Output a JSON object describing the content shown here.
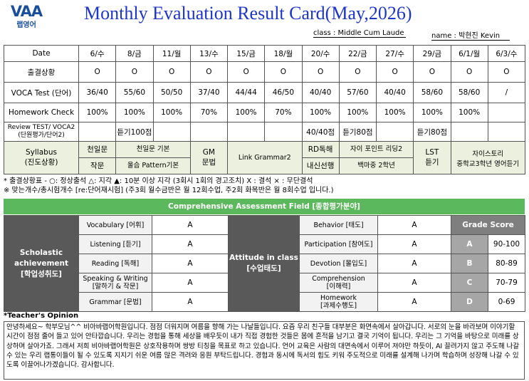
{
  "header": {
    "logo": "VAA",
    "logo_sub": "랩영어",
    "title": "Monthly Evaluation Result Card(May,2026)",
    "class": "class : Middle Cum Laude",
    "name": "name :  박현진 Kevin"
  },
  "attendance": {
    "header": [
      "Date",
      "6/수",
      "8/금",
      "11/월",
      "13/수",
      "15/금",
      "18/월",
      "20/수",
      "22/금",
      "27/수",
      "29/금",
      "6/1/월",
      "6/3/수"
    ],
    "rows": [
      [
        [
          "출결상황"
        ],
        "O",
        "O",
        "O",
        "O",
        "O",
        "O",
        "O",
        "O",
        "O",
        "O",
        "O",
        "O"
      ],
      [
        [
          "VOCA Test (단어)"
        ],
        "36/40",
        "55/60",
        "50/50",
        "37/40",
        "44/44",
        "46/50",
        "40/40",
        "57/60",
        "40/40",
        "58/60",
        "58/60",
        "/"
      ],
      [
        [
          "Homework Check"
        ],
        "100%",
        "100%",
        "100%",
        "70%",
        "100%",
        "70%",
        "100%",
        "100%",
        "100%",
        "100%",
        "100%",
        null
      ],
      [
        [
          "Review TEST/ VOCA2",
          "(단원평가/단어2)"
        ],
        null,
        "듣기100점",
        null,
        null,
        null,
        null,
        "40/40점",
        "듣기80점",
        null,
        "듣기80점",
        null,
        null
      ]
    ]
  },
  "syllabus": {
    "label": [
      "Syllabus",
      "(진도상황)"
    ],
    "cells": [
      [
        "천일문",
        "작문"
      ],
      [
        "천일문 기본",
        "울슴 Pattern기본"
      ],
      [
        "GM",
        "문법"
      ],
      [
        "Link Grammar2"
      ],
      [
        "RD독해",
        "내신선행"
      ],
      [
        "자이 포인트 리딩2",
        "백마중 2학년"
      ],
      [
        "LST",
        "듣기"
      ],
      [
        "자이스토리",
        "중학교3학년 영어듣기"
      ]
    ]
  },
  "notes": [
    "* 출결상황표 - ○: 정상출석    △: 지각   ▲: 10분 이상 지각 (3회시 1회의 경고조치)  X : 결석  × : 무단결석",
    "※ 맞는개수/총시험개수 [re:단어재시험] (주3회 월수금반은 월 12회수업, 주2회 화목반은 월 8회수업 입니다.)"
  ],
  "assessment": {
    "title": "Comprehensive Assessment Field [종합평가분야]",
    "scholastic": {
      "label": [
        "Scholastic",
        "achievement",
        "[학업성취도]"
      ],
      "items": [
        {
          "name": [
            "Vocabulary [어휘]"
          ],
          "grade": "A"
        },
        {
          "name": [
            "Listening [듣기]"
          ],
          "grade": "A"
        },
        {
          "name": [
            "Reading [독해]"
          ],
          "grade": "A"
        },
        {
          "name": [
            "Speaking & Writing",
            "[말하기 & 작문]"
          ],
          "grade": "A"
        },
        {
          "name": [
            "Grammar [문법]"
          ],
          "grade": "A"
        }
      ]
    },
    "attitude": {
      "label": [
        "Attitude in class",
        "[수업태도]"
      ],
      "items": [
        {
          "name": [
            "Behavior [태도]"
          ],
          "grade": "A"
        },
        {
          "name": [
            "Participation [참여도]"
          ],
          "grade": "A"
        },
        {
          "name": [
            "Devotion [몰입도]"
          ],
          "grade": "A"
        },
        {
          "name": [
            "Comprehension",
            "[이해력]"
          ],
          "grade": "A"
        },
        {
          "name": [
            "Homework",
            "[과제수행도]"
          ],
          "grade": "A"
        }
      ]
    },
    "grade_score": {
      "title": "Grade Score",
      "rows": [
        [
          "A",
          "90-100"
        ],
        [
          "B",
          "80-89"
        ],
        [
          "C",
          "70-79"
        ],
        [
          "D",
          "0-69"
        ]
      ]
    }
  },
  "opinion": {
    "title": "*Teacher's Opinion",
    "text": "안녕하세요~ 학부모님^^ 비아바랩어학원입니다. 점점 더워지며 여름을 향해 가는 나날들입니다. 요즘 우리 친구들 대부분은 화면속에서 살아갑니다. 서로의 눈을 바라보며 이야기할 시간이 점점 줄어 들고 있어 안타깝습니다. 우리는 경험을 통해 세상을 배우듯이 내가 직접 경험한 것들은 몸에 흔적을 남기고 결국 기억이 됩니다. 우리는 그 기억을 바탕으로 미래를 상상하며 살아가죠. 그래서 저희 비아바랩어학원은 상호작용하며 쌍방 티칭을 목표로 하고 있습니다. 언어 교육은 사람의 대면속에서 이루어 져야만 하듯이, AI 끌려가지 않고 주도해 나갈 수 있는 우리 랩통이들이 될 수 있도록 지지기 쉬운 여름 많은 격려와 응원 부탁드립니다. 경험과 동시에 독서의 힘도 키워 주도적으로 미래를 설계해 나가며 학습하며 성장해 나갈 수 있도록 이끌어나가겠습니다. 감사합니다."
  }
}
